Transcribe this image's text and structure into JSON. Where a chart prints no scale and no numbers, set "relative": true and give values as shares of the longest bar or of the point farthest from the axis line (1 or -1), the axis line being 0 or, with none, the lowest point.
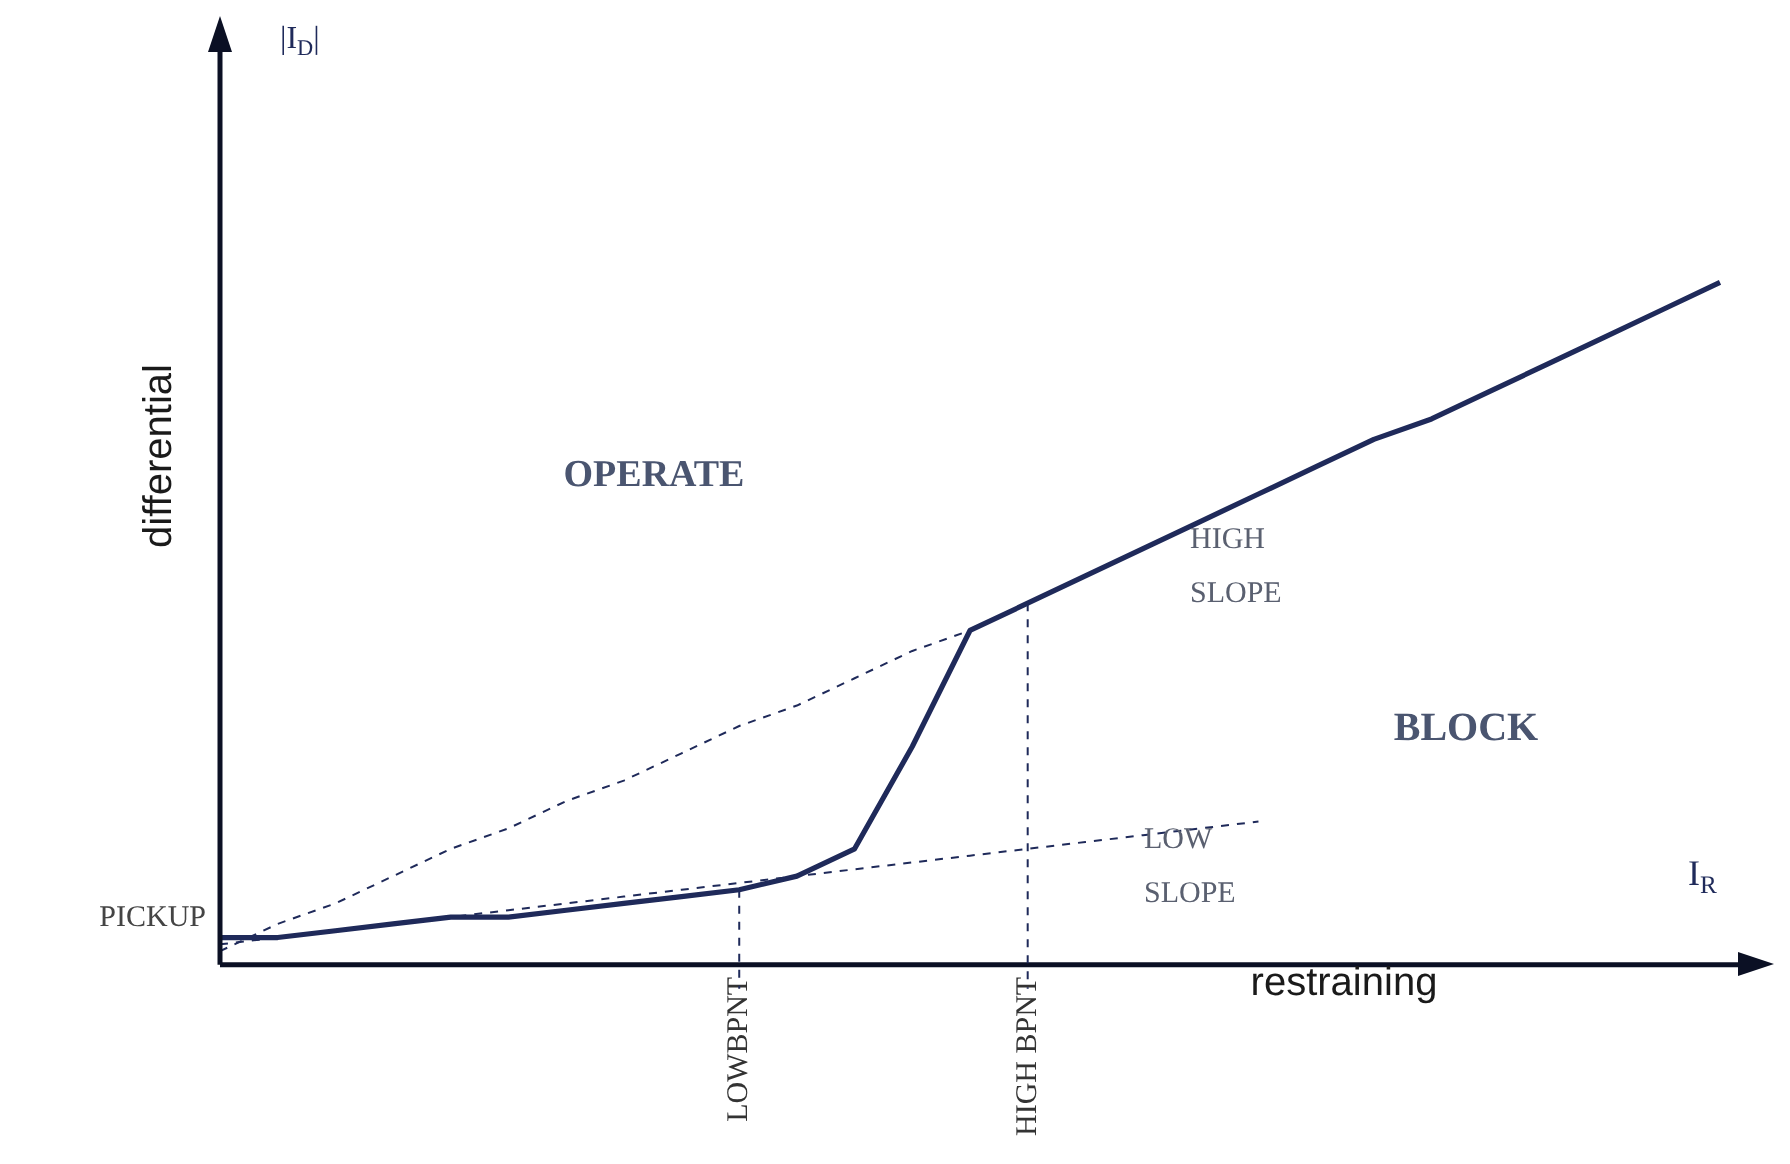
{
  "chart_data": {
    "type": "line",
    "relative": true,
    "xlabel": "restraining",
    "ylabel": "differential",
    "categories": [
      null,
      null,
      null,
      null,
      null,
      null,
      null,
      null,
      null,
      "LOWBPNT",
      null,
      null,
      null,
      null,
      "HIGH BPNT",
      null,
      null,
      null,
      null,
      null,
      null,
      null,
      null,
      null,
      null,
      null,
      null
    ],
    "series": [
      {
        "color": "#1f2a5a",
        "line_style": "solid",
        "values": [
          0.04,
          0.04,
          0.05,
          0.06,
          0.07,
          0.07,
          0.08,
          0.09,
          0.1,
          0.11,
          0.13,
          0.17,
          0.32,
          0.49,
          0.53,
          0.57,
          0.61,
          0.65,
          0.69,
          0.73,
          0.77,
          0.8,
          0.84,
          0.88,
          0.92,
          0.96,
          1
        ]
      },
      {
        "color": "#1f2a5a",
        "line_style": "dashed",
        "values": [
          0.03,
          0.04,
          0.05,
          0.06,
          0.07,
          0.08,
          0.09,
          0.1,
          0.11,
          0.12,
          0.13,
          0.14,
          0.15,
          0.16,
          0.17,
          0.18,
          0.19,
          0.2,
          0.21,
          null,
          null,
          null,
          null,
          null,
          null,
          null,
          null
        ]
      },
      {
        "color": "#1f2a5a",
        "line_style": "dashed",
        "values": [
          0.02,
          0.06,
          0.09,
          0.13,
          0.17,
          0.2,
          0.24,
          0.27,
          0.31,
          0.35,
          0.38,
          0.42,
          0.46,
          0.49,
          0.53,
          null,
          null,
          null,
          null,
          null,
          null,
          null,
          null,
          null,
          null,
          null,
          null
        ]
      }
    ],
    "ref_lines": [
      {
        "axis": "x",
        "value": "LOWBPNT",
        "line_style": "dashed"
      },
      {
        "axis": "x",
        "value": "HIGH BPNT",
        "line_style": "dashed"
      }
    ],
    "annotations": [
      "|I$_{D}$|",
      "OPERATE",
      "HIGH SLOPE",
      "BLOCK",
      "LOW SLOPE",
      "PICKUP",
      "I$_{R}$"
    ],
    "marker": "none",
    "grid": false,
    "legend": false
  }
}
